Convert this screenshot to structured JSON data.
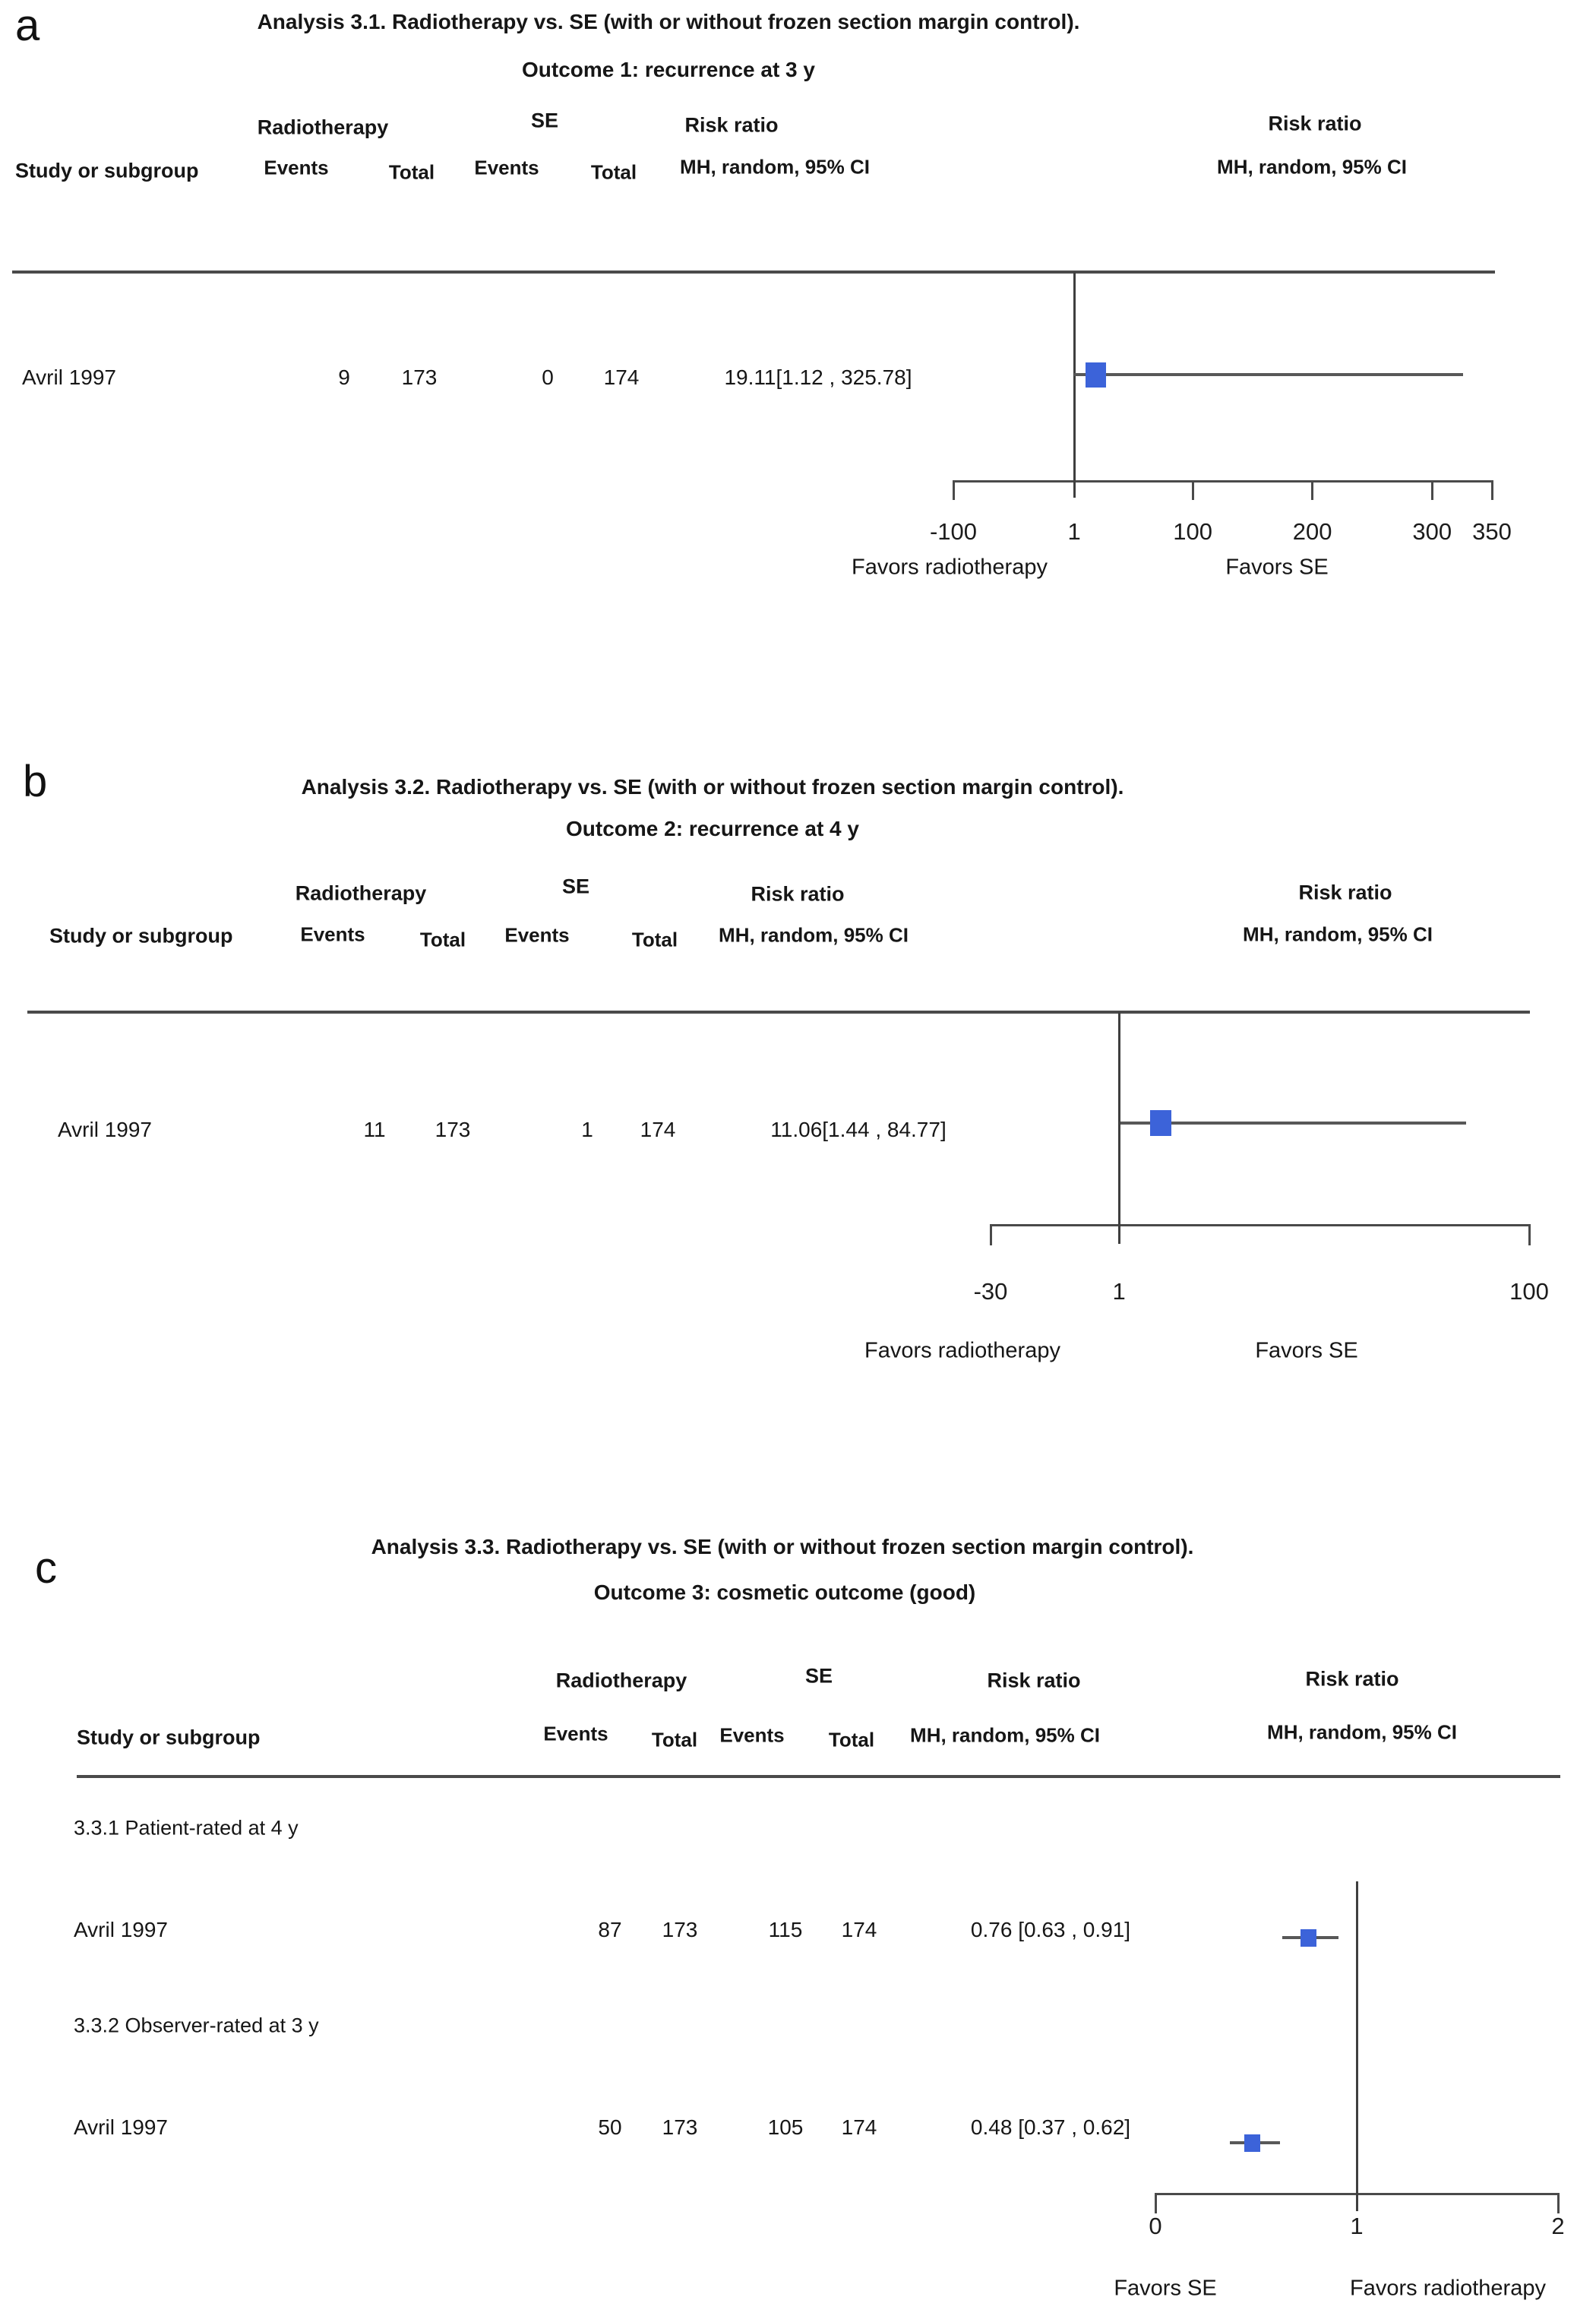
{
  "colors": {
    "marker_blue": "#3c63d9",
    "axis_gray": "#4a4a4a",
    "ref_line_gray": "#3f3f3f",
    "ci_gray": "#585858",
    "text": "#161616"
  },
  "table_headers": {
    "study": "Study or subgroup",
    "group1": "Radiotherapy",
    "group2": "SE",
    "effect_col": "Risk ratio",
    "events": "Events",
    "total": "Total",
    "effect_sub": "MH, random, 95% CI"
  },
  "panels": [
    {
      "letter": "a",
      "title1": "Analysis 3.1. Radiotherapy vs. SE (with or without frozen section margin control).",
      "title2": "Outcome 1: recurrence at 3 y",
      "rows": [
        {
          "study": "Avril 1997",
          "e1": "9",
          "t1": "173",
          "e2": "0",
          "t2": "174",
          "effect": "19.11[1.12 , 325.78]"
        }
      ],
      "favors_left": "Favors radiotherapy",
      "favors_right": "Favors SE"
    },
    {
      "letter": "b",
      "title1": "Analysis 3.2. Radiotherapy vs. SE (with or without frozen section margin control).",
      "title2": "Outcome 2: recurrence at 4 y",
      "rows": [
        {
          "study": "Avril 1997",
          "e1": "11",
          "t1": "173",
          "e2": "1",
          "t2": "174",
          "effect": "11.06[1.44 , 84.77]"
        }
      ],
      "favors_left": "Favors radiotherapy",
      "favors_right": "Favors SE"
    },
    {
      "letter": "c",
      "title1": "Analysis 3.3. Radiotherapy vs. SE (with or without frozen section margin control).",
      "title2": "Outcome 3: cosmetic outcome (good)",
      "subgroup1": "3.3.1 Patient-rated at 4 y",
      "subgroup2": "3.3.2 Observer-rated at 3 y",
      "rows": [
        {
          "study": "Avril 1997",
          "e1": "87",
          "t1": "173",
          "e2": "115",
          "t2": "174",
          "effect": "0.76 [0.63 , 0.91]"
        },
        {
          "study": "Avril 1997",
          "e1": "50",
          "t1": "173",
          "e2": "105",
          "t2": "174",
          "effect": "0.48 [0.37 , 0.62]"
        }
      ],
      "favors_left": "Favors SE",
      "favors_right": "Favors radiotherapy"
    }
  ],
  "chart_data": [
    {
      "type": "forest",
      "title": "Analysis 3.1. Radiotherapy vs. SE (with or without frozen section margin control).",
      "subtitle": "Outcome 1: recurrence at 3 y",
      "effect_measure": "Risk ratio, MH, random, 95% CI",
      "scale": "linear",
      "xlim": [
        -100,
        350
      ],
      "xticks": [
        -100,
        1,
        100,
        200,
        300,
        350
      ],
      "reference_line": 1,
      "favors_left": "Favors radiotherapy",
      "favors_right": "Favors SE",
      "studies": [
        {
          "study": "Avril 1997",
          "treatment_events": 9,
          "treatment_total": 173,
          "control_events": 0,
          "control_total": 174,
          "estimate": 19.11,
          "ci_low": 1.12,
          "ci_high": 325.78
        }
      ]
    },
    {
      "type": "forest",
      "title": "Analysis 3.2. Radiotherapy vs. SE (with or without frozen section margin control).",
      "subtitle": "Outcome 2: recurrence at 4 y",
      "effect_measure": "Risk ratio, MH, random, 95% CI",
      "scale": "linear",
      "xlim": [
        -30,
        100
      ],
      "xticks": [
        -30,
        1,
        100
      ],
      "reference_line": 1,
      "favors_left": "Favors radiotherapy",
      "favors_right": "Favors SE",
      "studies": [
        {
          "study": "Avril 1997",
          "treatment_events": 11,
          "treatment_total": 173,
          "control_events": 1,
          "control_total": 174,
          "estimate": 11.06,
          "ci_low": 1.44,
          "ci_high": 84.77
        }
      ]
    },
    {
      "type": "forest",
      "title": "Analysis 3.3. Radiotherapy vs. SE (with or without frozen section margin control).",
      "subtitle": "Outcome 3: cosmetic outcome (good)",
      "effect_measure": "Risk ratio, MH, random, 95% CI",
      "scale": "linear",
      "xlim": [
        0,
        2
      ],
      "xticks": [
        0,
        1,
        2
      ],
      "reference_line": 1,
      "favors_left": "Favors SE",
      "favors_right": "Favors radiotherapy",
      "subgroups": [
        {
          "label": "3.3.1 Patient-rated at 4 y",
          "studies": [
            {
              "study": "Avril 1997",
              "treatment_events": 87,
              "treatment_total": 173,
              "control_events": 115,
              "control_total": 174,
              "estimate": 0.76,
              "ci_low": 0.63,
              "ci_high": 0.91
            }
          ]
        },
        {
          "label": "3.3.2 Observer-rated at 3 y",
          "studies": [
            {
              "study": "Avril 1997",
              "treatment_events": 50,
              "treatment_total": 173,
              "control_events": 105,
              "control_total": 174,
              "estimate": 0.48,
              "ci_low": 0.37,
              "ci_high": 0.62
            }
          ]
        }
      ]
    }
  ]
}
